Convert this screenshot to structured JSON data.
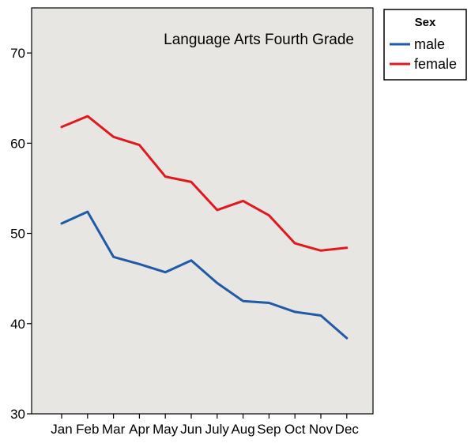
{
  "chart_data": {
    "type": "line",
    "title": "Language Arts Fourth Grade",
    "xlabel": "",
    "ylabel": "",
    "categories": [
      "Jan",
      "Feb",
      "Mar",
      "Apr",
      "May",
      "Jun",
      "July",
      "Aug",
      "Sep",
      "Oct",
      "Nov",
      "Dec"
    ],
    "ylim": [
      30,
      75
    ],
    "yticks": [
      30,
      40,
      50,
      60,
      70
    ],
    "grid": false,
    "legend": {
      "title": "Sex",
      "placement": "outside top-right"
    },
    "series": [
      {
        "name": "male",
        "color": "#1f5aa8",
        "values": [
          51.1,
          52.4,
          47.4,
          46.6,
          45.7,
          47.0,
          44.5,
          42.5,
          42.3,
          41.3,
          40.9,
          38.4
        ]
      },
      {
        "name": "female",
        "color": "#e0191f",
        "values": [
          61.8,
          63.0,
          60.7,
          59.8,
          56.3,
          55.7,
          52.6,
          53.6,
          52.0,
          48.9,
          48.1,
          48.4
        ]
      }
    ],
    "background": "#e8e6e2"
  }
}
